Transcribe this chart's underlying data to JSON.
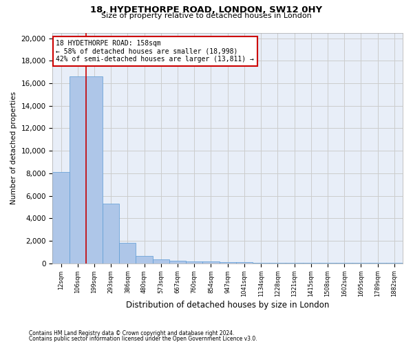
{
  "title_line1": "18, HYDETHORPE ROAD, LONDON, SW12 0HY",
  "title_line2": "Size of property relative to detached houses in London",
  "xlabel": "Distribution of detached houses by size in London",
  "ylabel": "Number of detached properties",
  "bar_color": "#aec6e8",
  "bar_edgecolor": "#5b9bd5",
  "categories": [
    "12sqm",
    "106sqm",
    "199sqm",
    "293sqm",
    "386sqm",
    "480sqm",
    "573sqm",
    "667sqm",
    "760sqm",
    "854sqm",
    "947sqm",
    "1041sqm",
    "1134sqm",
    "1228sqm",
    "1321sqm",
    "1415sqm",
    "1508sqm",
    "1602sqm",
    "1695sqm",
    "1789sqm",
    "1882sqm"
  ],
  "values": [
    8100,
    16600,
    16600,
    5300,
    1800,
    650,
    350,
    220,
    170,
    130,
    100,
    80,
    65,
    55,
    45,
    38,
    32,
    28,
    24,
    20,
    17
  ],
  "annotation_line1": "18 HYDETHORPE ROAD: 158sqm",
  "annotation_line2": "← 58% of detached houses are smaller (18,998)",
  "annotation_line3": "42% of semi-detached houses are larger (13,811) →",
  "vline_index": 1.5,
  "ylim": [
    0,
    20500
  ],
  "yticks": [
    0,
    2000,
    4000,
    6000,
    8000,
    10000,
    12000,
    14000,
    16000,
    18000,
    20000
  ],
  "footer_line1": "Contains HM Land Registry data © Crown copyright and database right 2024.",
  "footer_line2": "Contains public sector information licensed under the Open Government Licence v3.0.",
  "annotation_box_color": "#cc0000",
  "vline_color": "#cc0000",
  "grid_color": "#cccccc",
  "background_color": "#e8eef8"
}
